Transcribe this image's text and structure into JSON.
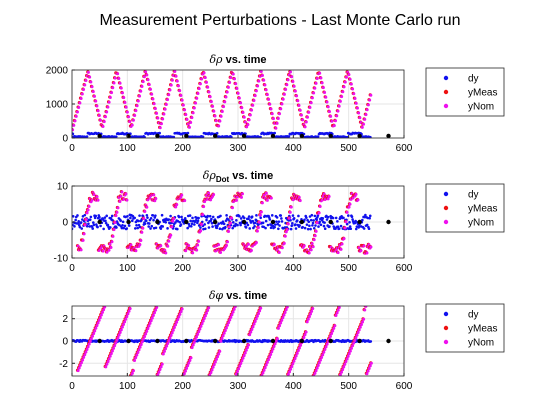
{
  "figure": {
    "suptitle": "Measurement Perturbations - Last Monte Carlo run"
  },
  "legend_entries": [
    "dy",
    "yMeas",
    "yNom"
  ],
  "colors": {
    "dy": "#1111ee",
    "yMeas": "#ee1111",
    "yNom": "#ee11ee",
    "markers": "#000000",
    "grid": "#e6e6e6",
    "axes": "#262626"
  },
  "chart_data": [
    {
      "type": "scatter",
      "title": "δρ vs. time",
      "title_parts": {
        "symbol": "δρ",
        "subscript": "",
        "rest": " vs. time"
      },
      "xlabel": "",
      "ylabel": "",
      "xlim": [
        0,
        600
      ],
      "ylim": [
        0,
        2000
      ],
      "xticks": [
        0,
        100,
        200,
        300,
        400,
        500,
        600
      ],
      "yticks": [
        0,
        1000,
        2000
      ],
      "grid": true,
      "legend": "right",
      "series": [
        {
          "name": "yMeas",
          "description": "sawtooth ramps",
          "peaks": [
            [
              28,
              1950
            ],
            [
              80,
              1980
            ],
            [
              130,
              1990
            ],
            [
              183,
              2000
            ],
            [
              235,
              1990
            ],
            [
              287,
              2000
            ],
            [
              338,
              1990
            ],
            [
              392,
              2000
            ],
            [
              444,
              1990
            ],
            [
              497,
              1950
            ]
          ],
          "troughs": [
            [
              52,
              300
            ],
            [
              104,
              300
            ],
            [
              156,
              300
            ],
            [
              208,
              300
            ],
            [
              260,
              300
            ],
            [
              312,
              300
            ],
            [
              364,
              300
            ],
            [
              416,
              300
            ],
            [
              468,
              300
            ],
            [
              518,
              300
            ]
          ],
          "end": [
            [
              538,
              650
            ]
          ]
        },
        {
          "name": "yNom",
          "description": "same as yMeas"
        },
        {
          "name": "dy",
          "description": "dashed near zero",
          "range": [
            0,
            150
          ]
        }
      ]
    },
    {
      "type": "scatter",
      "title": "δρDot vs. time",
      "title_parts": {
        "symbol": "δρ",
        "subscript": "Dot",
        "rest": " vs. time"
      },
      "xlabel": "",
      "ylabel": "",
      "xlim": [
        0,
        600
      ],
      "ylim": [
        -10,
        10
      ],
      "xticks": [
        0,
        100,
        200,
        300,
        400,
        500,
        600
      ],
      "yticks": [
        -10,
        0,
        10
      ],
      "grid": true,
      "legend": "right",
      "series": [
        {
          "name": "yMeas",
          "description": "S-curves from -8 to 8 each cycle"
        },
        {
          "name": "yNom",
          "description": "same as yMeas"
        },
        {
          "name": "dy",
          "description": "noise around 0",
          "range": [
            -2,
            2
          ]
        }
      ]
    },
    {
      "type": "scatter",
      "title": "δφ vs. time",
      "title_parts": {
        "symbol": "δφ",
        "subscript": "",
        "rest": " vs. time"
      },
      "xlabel": "",
      "ylabel": "",
      "xlim": [
        0,
        600
      ],
      "ylim": [
        -3.14,
        3.14
      ],
      "xticks": [
        0,
        100,
        200,
        300,
        400,
        500,
        600
      ],
      "yticks": [
        -2,
        0,
        2
      ],
      "grid": true,
      "legend": "right",
      "series": [
        {
          "name": "yMeas",
          "description": "wrapped phase ramps"
        },
        {
          "name": "yNom",
          "description": "same as yMeas"
        },
        {
          "name": "dy",
          "description": "near 0",
          "range": [
            -0.1,
            0.1
          ]
        }
      ]
    }
  ]
}
